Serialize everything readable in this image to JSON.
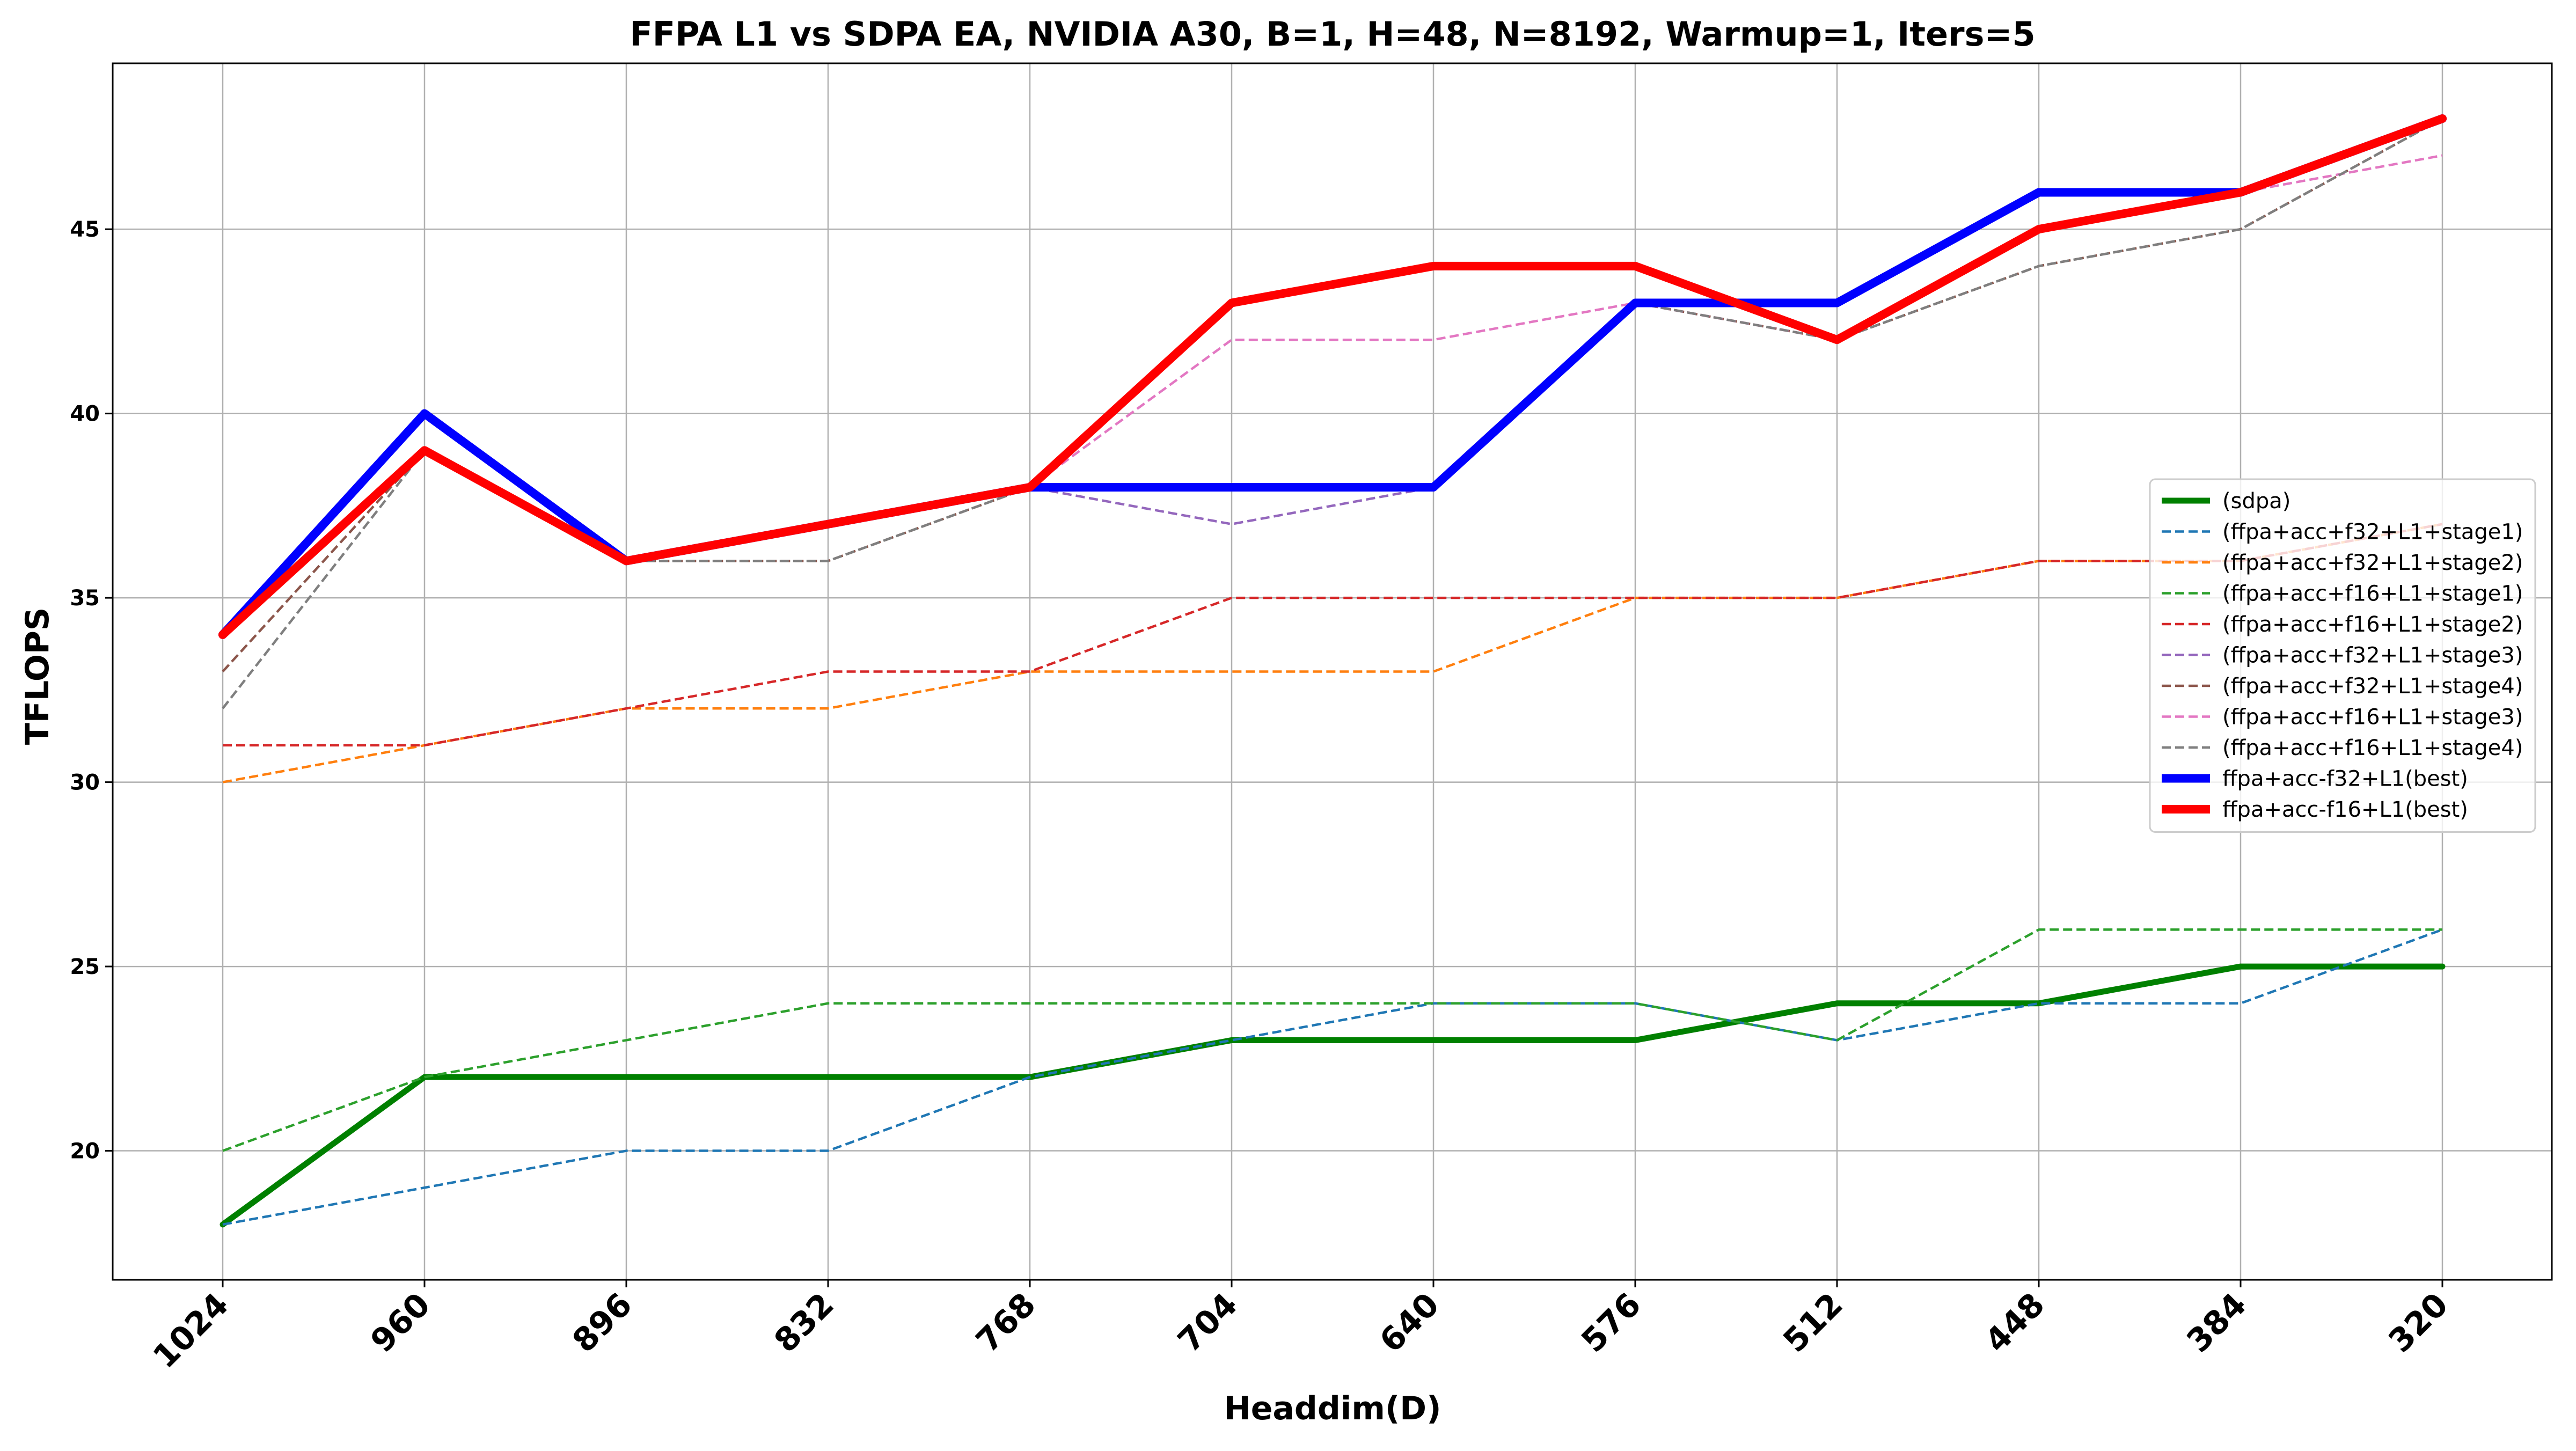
{
  "chart_data": {
    "type": "line",
    "title": "FFPA L1 vs SDPA EA, NVIDIA A30, B=1, H=48, N=8192, Warmup=1, Iters=5",
    "xlabel": "Headdim(D)",
    "ylabel": "TFLOPS",
    "categories": [
      "1024",
      "960",
      "896",
      "832",
      "768",
      "704",
      "640",
      "576",
      "512",
      "448",
      "384",
      "320"
    ],
    "ylim": [
      16.5,
      49.5
    ],
    "yticks": [
      "20",
      "25",
      "30",
      "35",
      "40",
      "45"
    ],
    "grid": true,
    "legend_position": "center-right",
    "series": [
      {
        "name": "(sdpa)",
        "color": "#008000",
        "style": "solid",
        "weight": "thick",
        "values": [
          18,
          22,
          22,
          22,
          22,
          23,
          23,
          23,
          24,
          24,
          25,
          25
        ]
      },
      {
        "name": "(ffpa+acc+f32+L1+stage1)",
        "color": "#1f77b4",
        "style": "dashed",
        "weight": "thin",
        "values": [
          18,
          19,
          20,
          20,
          22,
          23,
          24,
          24,
          23,
          24,
          24,
          26
        ]
      },
      {
        "name": "(ffpa+acc+f32+L1+stage2)",
        "color": "#ff7f0e",
        "style": "dashed",
        "weight": "thin",
        "values": [
          30,
          31,
          32,
          32,
          33,
          33,
          33,
          35,
          35,
          36,
          36,
          37
        ]
      },
      {
        "name": "(ffpa+acc+f16+L1+stage1)",
        "color": "#2ca02c",
        "style": "dashed",
        "weight": "thin",
        "values": [
          20,
          22,
          23,
          24,
          24,
          24,
          24,
          24,
          23,
          26,
          26,
          26
        ]
      },
      {
        "name": "(ffpa+acc+f16+L1+stage2)",
        "color": "#d62728",
        "style": "dashed",
        "weight": "thin",
        "values": [
          31,
          31,
          32,
          33,
          33,
          35,
          35,
          35,
          35,
          36,
          36,
          37
        ]
      },
      {
        "name": "(ffpa+acc+f32+L1+stage3)",
        "color": "#9467bd",
        "style": "dashed",
        "weight": "thin",
        "values": [
          34,
          40,
          36,
          37,
          38,
          37,
          38,
          43,
          43,
          46,
          46,
          48
        ]
      },
      {
        "name": "(ffpa+acc+f32+L1+stage4)",
        "color": "#8c564b",
        "style": "dashed",
        "weight": "thin",
        "values": [
          33,
          39,
          36,
          36,
          38,
          38,
          38,
          43,
          42,
          44,
          45,
          48
        ]
      },
      {
        "name": "(ffpa+acc+f16+L1+stage3)",
        "color": "#e377c2",
        "style": "dashed",
        "weight": "thin",
        "values": [
          34,
          39,
          36,
          37,
          38,
          42,
          42,
          43,
          42,
          45,
          46,
          47
        ]
      },
      {
        "name": "(ffpa+acc+f16+L1+stage4)",
        "color": "#7f7f7f",
        "style": "dashed",
        "weight": "thin",
        "values": [
          32,
          39,
          36,
          36,
          38,
          38,
          38,
          43,
          42,
          44,
          45,
          48
        ]
      },
      {
        "name": "ffpa+acc-f32+L1(best)",
        "color": "#0000ff",
        "style": "solid",
        "weight": "bold",
        "values": [
          34,
          40,
          36,
          37,
          38,
          38,
          38,
          43,
          43,
          46,
          46,
          48
        ]
      },
      {
        "name": "ffpa+acc-f16+L1(best)",
        "color": "#ff0000",
        "style": "solid",
        "weight": "bold",
        "values": [
          34,
          39,
          36,
          37,
          38,
          43,
          44,
          44,
          42,
          45,
          46,
          48
        ]
      }
    ]
  }
}
